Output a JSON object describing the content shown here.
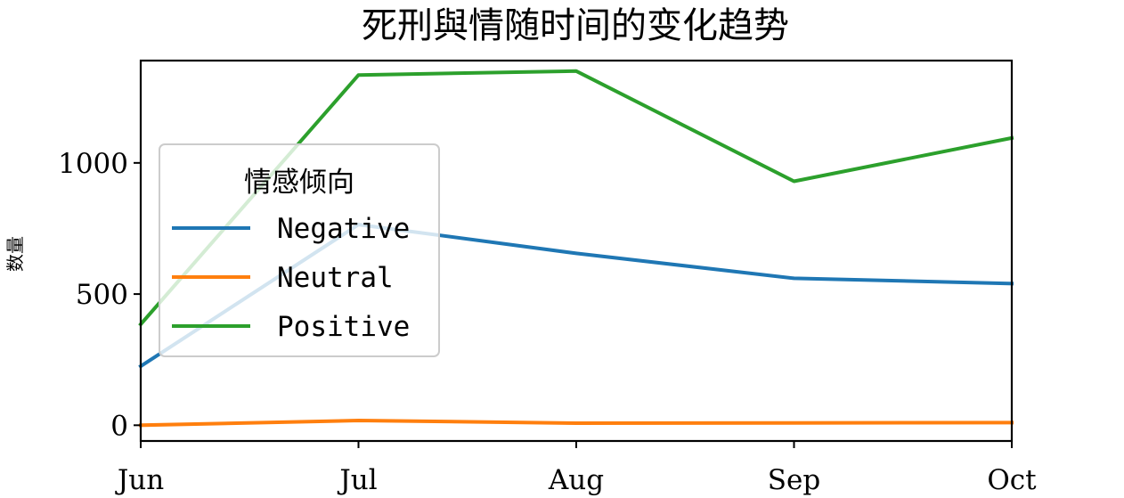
{
  "chart_data": {
    "type": "line",
    "title": "死刑與情随时间的变化趋势",
    "xlabel": "",
    "ylabel": "数量",
    "categories": [
      "Jun",
      "Jul",
      "Aug",
      "Sep",
      "Oct"
    ],
    "ylim": [
      -60,
      1390
    ],
    "yticks": [
      0,
      500,
      1000
    ],
    "grid": false,
    "legend": {
      "title": "情感倾向",
      "placement": "center-left"
    },
    "series": [
      {
        "name": "Negative",
        "color": "#1f77b4",
        "values": [
          225,
          765,
          655,
          560,
          540
        ]
      },
      {
        "name": "Neutral",
        "color": "#ff7f0e",
        "values": [
          0,
          18,
          8,
          9,
          10
        ]
      },
      {
        "name": "Positive",
        "color": "#2ca02c",
        "values": [
          385,
          1335,
          1350,
          930,
          1095
        ]
      }
    ]
  }
}
